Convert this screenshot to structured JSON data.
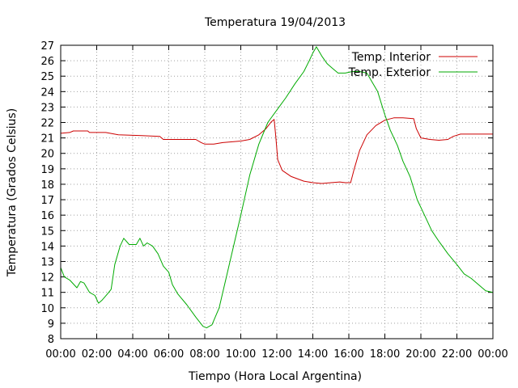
{
  "chart_data": {
    "type": "line",
    "title": "Temperatura 19/04/2013",
    "xlabel": "Tiempo (Hora Local Argentina)",
    "ylabel": "Temperatura (Grados Celsius)",
    "xlim": [
      0,
      24
    ],
    "ylim": [
      8,
      27
    ],
    "grid": true,
    "legend_position": "top-right",
    "x_tick_labels": [
      "00:00",
      "02:00",
      "04:00",
      "06:00",
      "08:00",
      "10:00",
      "12:00",
      "14:00",
      "16:00",
      "18:00",
      "20:00",
      "22:00",
      "00:00"
    ],
    "y_ticks": [
      8,
      9,
      10,
      11,
      12,
      13,
      14,
      15,
      16,
      17,
      18,
      19,
      20,
      21,
      22,
      23,
      24,
      25,
      26,
      27
    ],
    "series": [
      {
        "name": "Temp. Interior",
        "color": "#cc0000",
        "points": [
          [
            0,
            21.3
          ],
          [
            0.5,
            21.35
          ],
          [
            0.7,
            21.45
          ],
          [
            1.5,
            21.45
          ],
          [
            1.6,
            21.35
          ],
          [
            2.5,
            21.35
          ],
          [
            3.2,
            21.2
          ],
          [
            4.5,
            21.15
          ],
          [
            5.5,
            21.1
          ],
          [
            5.7,
            20.9
          ],
          [
            6.5,
            20.9
          ],
          [
            7.5,
            20.9
          ],
          [
            7.8,
            20.7
          ],
          [
            8.0,
            20.6
          ],
          [
            8.5,
            20.6
          ],
          [
            9.0,
            20.7
          ],
          [
            10.0,
            20.8
          ],
          [
            10.5,
            20.9
          ],
          [
            11.0,
            21.2
          ],
          [
            11.4,
            21.6
          ],
          [
            11.7,
            22.05
          ],
          [
            11.85,
            22.2
          ],
          [
            11.95,
            21.0
          ],
          [
            12.05,
            19.6
          ],
          [
            12.3,
            18.9
          ],
          [
            12.8,
            18.5
          ],
          [
            13.5,
            18.2
          ],
          [
            14.0,
            18.1
          ],
          [
            14.5,
            18.05
          ],
          [
            15.0,
            18.1
          ],
          [
            15.5,
            18.15
          ],
          [
            15.8,
            18.1
          ],
          [
            16.1,
            18.1
          ],
          [
            16.3,
            19.0
          ],
          [
            16.6,
            20.2
          ],
          [
            17.0,
            21.2
          ],
          [
            17.5,
            21.8
          ],
          [
            18.0,
            22.15
          ],
          [
            18.5,
            22.3
          ],
          [
            19.0,
            22.3
          ],
          [
            19.6,
            22.25
          ],
          [
            19.75,
            21.6
          ],
          [
            20.0,
            21.0
          ],
          [
            20.5,
            20.9
          ],
          [
            21.0,
            20.85
          ],
          [
            21.5,
            20.9
          ],
          [
            21.8,
            21.1
          ],
          [
            22.2,
            21.25
          ],
          [
            24.0,
            21.25
          ]
        ]
      },
      {
        "name": "Temp. Exterior",
        "color": "#00aa00",
        "points": [
          [
            0,
            12.6
          ],
          [
            0.2,
            12.0
          ],
          [
            0.5,
            11.8
          ],
          [
            0.9,
            11.3
          ],
          [
            1.1,
            11.7
          ],
          [
            1.3,
            11.6
          ],
          [
            1.6,
            11.0
          ],
          [
            1.9,
            10.8
          ],
          [
            2.1,
            10.3
          ],
          [
            2.3,
            10.5
          ],
          [
            2.6,
            10.9
          ],
          [
            2.8,
            11.2
          ],
          [
            3.0,
            12.8
          ],
          [
            3.3,
            14.0
          ],
          [
            3.5,
            14.5
          ],
          [
            3.8,
            14.1
          ],
          [
            4.2,
            14.1
          ],
          [
            4.4,
            14.5
          ],
          [
            4.6,
            14.0
          ],
          [
            4.8,
            14.2
          ],
          [
            5.1,
            14.0
          ],
          [
            5.4,
            13.5
          ],
          [
            5.7,
            12.7
          ],
          [
            6.0,
            12.3
          ],
          [
            6.2,
            11.5
          ],
          [
            6.5,
            10.9
          ],
          [
            7.0,
            10.2
          ],
          [
            7.5,
            9.4
          ],
          [
            7.9,
            8.8
          ],
          [
            8.1,
            8.7
          ],
          [
            8.4,
            8.9
          ],
          [
            8.8,
            10.0
          ],
          [
            9.2,
            12.0
          ],
          [
            9.6,
            14.0
          ],
          [
            10.0,
            16.0
          ],
          [
            10.5,
            18.6
          ],
          [
            11.0,
            20.6
          ],
          [
            11.5,
            22.0
          ],
          [
            12.0,
            22.8
          ],
          [
            12.5,
            23.6
          ],
          [
            13.0,
            24.5
          ],
          [
            13.5,
            25.3
          ],
          [
            13.8,
            26.0
          ],
          [
            14.0,
            26.5
          ],
          [
            14.2,
            26.9
          ],
          [
            14.5,
            26.3
          ],
          [
            14.8,
            25.8
          ],
          [
            15.1,
            25.5
          ],
          [
            15.4,
            25.2
          ],
          [
            15.8,
            25.2
          ],
          [
            16.2,
            25.3
          ],
          [
            16.6,
            25.3
          ],
          [
            17.0,
            25.2
          ],
          [
            17.2,
            24.8
          ],
          [
            17.6,
            24.0
          ],
          [
            18.0,
            22.5
          ],
          [
            18.3,
            21.5
          ],
          [
            18.7,
            20.5
          ],
          [
            19.0,
            19.5
          ],
          [
            19.4,
            18.5
          ],
          [
            19.8,
            17.0
          ],
          [
            20.2,
            16.0
          ],
          [
            20.6,
            15.0
          ],
          [
            21.0,
            14.3
          ],
          [
            21.5,
            13.5
          ],
          [
            22.0,
            12.8
          ],
          [
            22.4,
            12.2
          ],
          [
            22.8,
            11.9
          ],
          [
            23.2,
            11.5
          ],
          [
            23.6,
            11.1
          ],
          [
            24.0,
            11.0
          ]
        ]
      }
    ]
  }
}
